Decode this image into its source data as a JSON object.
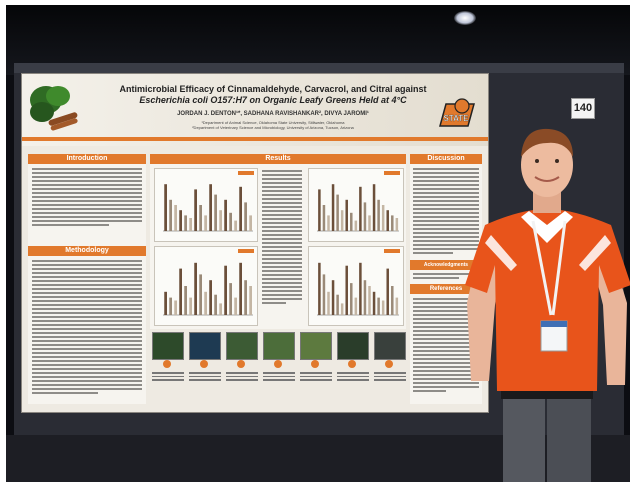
{
  "poster": {
    "title_line1": "Antimicrobial Efficacy of Cinnamaldehyde, Carvacrol, and Citral against",
    "title_line2": "Escherichia coli O157:H7 on Organic Leafy Greens Held at 4°C",
    "authors": "JORDAN J. DENTON¹*, SADHANA RAVISHANKAR², DIVYA JAROMI¹",
    "affiliation_1": "¹Department of Animal Science, Oklahoma State University, Stillwater, Oklahoma",
    "affiliation_2": "²Department of Veterinary Science and Microbiology, University of Arizona, Tucson, Arizona",
    "logo_text": "STATE",
    "sections": {
      "introduction": "Introduction",
      "methodology": "Methodology",
      "results": "Results",
      "discussion": "Discussion",
      "acknowledgments": "Acknowledgments",
      "references": "References"
    }
  },
  "booth": {
    "number": "140"
  },
  "colors": {
    "accent": "#e1792c",
    "shirt": "#e8541b"
  },
  "icons": {
    "logo": "university-logo-icon",
    "greens": "leafy-greens-photo"
  }
}
